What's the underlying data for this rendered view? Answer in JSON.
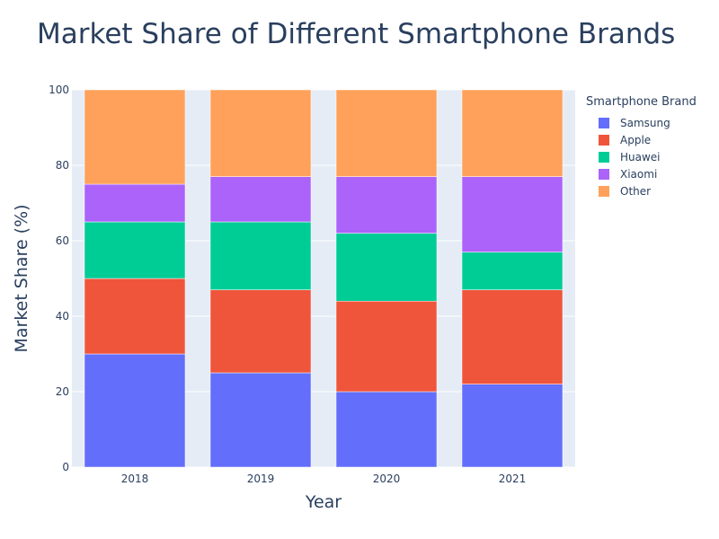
{
  "chart_data": {
    "type": "bar",
    "stacked": true,
    "title": "Market Share of Different Smartphone Brands",
    "xlabel": "Year",
    "ylabel": "Market Share (%)",
    "ylim": [
      0,
      100
    ],
    "yticks": [
      0,
      20,
      40,
      60,
      80,
      100
    ],
    "grid": true,
    "legend": {
      "title": "Smartphone Brand",
      "position": "right"
    },
    "categories": [
      "2018",
      "2019",
      "2020",
      "2021"
    ],
    "series": [
      {
        "name": "Samsung",
        "color": "#636efa",
        "values": [
          30,
          25,
          20,
          22
        ]
      },
      {
        "name": "Apple",
        "color": "#ef553b",
        "values": [
          20,
          22,
          24,
          25
        ]
      },
      {
        "name": "Huawei",
        "color": "#00cc96",
        "values": [
          15,
          18,
          18,
          10
        ]
      },
      {
        "name": "Xiaomi",
        "color": "#ab63fa",
        "values": [
          10,
          12,
          15,
          20
        ]
      },
      {
        "name": "Other",
        "color": "#ffa15a",
        "values": [
          25,
          23,
          23,
          23
        ]
      }
    ]
  },
  "colors": {
    "plot_background": "#e5ecf6",
    "text": "#2a3f5f",
    "grid": "#ffffff"
  }
}
